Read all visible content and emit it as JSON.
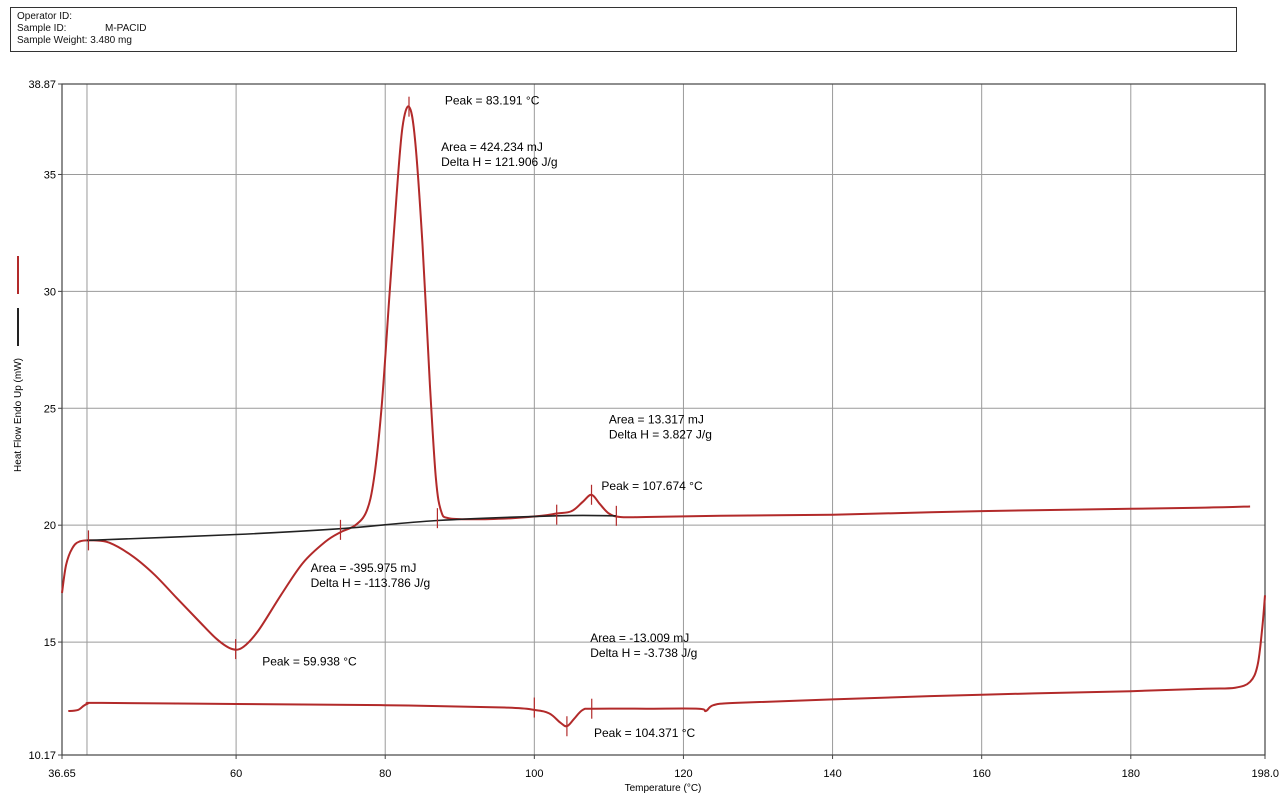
{
  "header": {
    "operator_label": "Operator ID:",
    "operator_value": "",
    "sample_label": "Sample ID:",
    "sample_value": "M-PACID",
    "weight_label": "Sample Weight:",
    "weight_value": "3.480 mg"
  },
  "chart_data": {
    "type": "line",
    "title": "",
    "xlabel": "Temperature (°C)",
    "ylabel": "Heat Flow Endo Up (mW)",
    "xlim": [
      36.65,
      198.0
    ],
    "ylim": [
      10.17,
      38.87
    ],
    "x_ticks": [
      {
        "value": 36.65,
        "label": "36.65"
      },
      {
        "value": 60,
        "label": "60"
      },
      {
        "value": 80,
        "label": "80"
      },
      {
        "value": 100,
        "label": "100"
      },
      {
        "value": 120,
        "label": "120"
      },
      {
        "value": 140,
        "label": "140"
      },
      {
        "value": 160,
        "label": "160"
      },
      {
        "value": 180,
        "label": "180"
      },
      {
        "value": 198.0,
        "label": "198.0"
      }
    ],
    "x_grid": [
      40,
      60,
      80,
      100,
      120,
      140,
      160,
      180
    ],
    "y_ticks": [
      {
        "value": 10.17,
        "label": "10.17"
      },
      {
        "value": 15,
        "label": "15"
      },
      {
        "value": 20,
        "label": "20"
      },
      {
        "value": 25,
        "label": "25"
      },
      {
        "value": 30,
        "label": "30"
      },
      {
        "value": 35,
        "label": "35"
      },
      {
        "value": 38.87,
        "label": "38.87"
      }
    ],
    "grid": true,
    "series": [
      {
        "color": "#b22a2a",
        "points": [
          [
            36.65,
            17.1
          ],
          [
            37.2,
            18.3
          ],
          [
            38,
            19.0
          ],
          [
            39,
            19.3
          ],
          [
            41,
            19.35
          ],
          [
            43,
            19.25
          ],
          [
            46,
            18.7
          ],
          [
            49,
            17.9
          ],
          [
            52,
            16.9
          ],
          [
            55,
            15.9
          ],
          [
            57.5,
            15.1
          ],
          [
            59.5,
            14.7
          ],
          [
            61,
            14.8
          ],
          [
            63,
            15.5
          ],
          [
            66,
            17.0
          ],
          [
            69,
            18.4
          ],
          [
            72,
            19.3
          ],
          [
            74,
            19.7
          ],
          [
            76,
            20.0
          ],
          [
            77.5,
            20.6
          ],
          [
            78.5,
            22.0
          ],
          [
            79.5,
            25.0
          ],
          [
            80.5,
            29.5
          ],
          [
            81.5,
            34.0
          ],
          [
            82.3,
            37.0
          ],
          [
            83.19,
            37.9
          ],
          [
            84,
            36.5
          ],
          [
            85,
            32.0
          ],
          [
            86,
            26.0
          ],
          [
            86.8,
            22.0
          ],
          [
            87.5,
            20.6
          ],
          [
            88.5,
            20.3
          ],
          [
            92,
            20.25
          ],
          [
            97,
            20.3
          ],
          [
            101,
            20.4
          ],
          [
            103,
            20.5
          ],
          [
            105,
            20.6
          ],
          [
            106.5,
            21.0
          ],
          [
            107.67,
            21.3
          ],
          [
            108.8,
            20.9
          ],
          [
            110,
            20.5
          ],
          [
            111.5,
            20.35
          ],
          [
            115,
            20.35
          ],
          [
            125,
            20.4
          ],
          [
            140,
            20.45
          ],
          [
            160,
            20.6
          ],
          [
            180,
            20.7
          ],
          [
            190,
            20.75
          ],
          [
            196,
            20.8
          ]
        ]
      },
      {
        "color": "#b22a2a",
        "points": [
          [
            37.5,
            12.05
          ],
          [
            38.8,
            12.1
          ],
          [
            40,
            12.35
          ],
          [
            42,
            12.4
          ],
          [
            60,
            12.35
          ],
          [
            80,
            12.3
          ],
          [
            96,
            12.2
          ],
          [
            100,
            12.1
          ],
          [
            102,
            11.95
          ],
          [
            103.5,
            11.55
          ],
          [
            104.37,
            11.4
          ],
          [
            105.3,
            11.7
          ],
          [
            106.5,
            12.1
          ],
          [
            108,
            12.15
          ],
          [
            115,
            12.15
          ],
          [
            122,
            12.15
          ],
          [
            123,
            12.05
          ],
          [
            124,
            12.3
          ],
          [
            127,
            12.4
          ],
          [
            140,
            12.55
          ],
          [
            160,
            12.75
          ],
          [
            180,
            12.9
          ],
          [
            190,
            13.0
          ],
          [
            194,
            13.05
          ],
          [
            196,
            13.3
          ],
          [
            197,
            14.0
          ],
          [
            197.6,
            15.5
          ],
          [
            198,
            17.0
          ]
        ]
      },
      {
        "color": "#222222",
        "points": [
          [
            40,
            19.35
          ],
          [
            60,
            19.6
          ],
          [
            74,
            19.85
          ],
          [
            87,
            20.2
          ],
          [
            103,
            20.4
          ],
          [
            111,
            20.4
          ]
        ]
      }
    ],
    "event_markers": [
      {
        "x": 40.2,
        "y": 19.35,
        "series": 0
      },
      {
        "x": 74,
        "y": 19.8,
        "series": 0
      },
      {
        "x": 87,
        "y": 20.3,
        "series": 0
      },
      {
        "x": 83.19,
        "y": 37.9,
        "series": 0
      },
      {
        "x": 59.94,
        "y": 14.7,
        "series": 0
      },
      {
        "x": 103,
        "y": 20.45,
        "series": 0
      },
      {
        "x": 107.67,
        "y": 21.3,
        "series": 0
      },
      {
        "x": 111,
        "y": 20.4,
        "series": 0
      },
      {
        "x": 100,
        "y": 12.2,
        "series": 1
      },
      {
        "x": 104.37,
        "y": 11.4,
        "series": 1
      },
      {
        "x": 107.7,
        "y": 12.15,
        "series": 1
      }
    ],
    "annotations": [
      {
        "lines": [
          "Peak = 83.191 °C"
        ],
        "x": 88,
        "y": 38.0
      },
      {
        "lines": [
          "Area = 424.234 mJ",
          "Delta H = 121.906 J/g"
        ],
        "x": 87.5,
        "y": 36.0
      },
      {
        "lines": [
          "Area = 13.317 mJ",
          "Delta H = 3.827 J/g"
        ],
        "x": 110,
        "y": 24.35
      },
      {
        "lines": [
          "Peak = 107.674 °C"
        ],
        "x": 109,
        "y": 21.5
      },
      {
        "lines": [
          "Area = -395.975 mJ",
          "Delta H = -113.786 J/g"
        ],
        "x": 70,
        "y": 18.0
      },
      {
        "lines": [
          "Peak = 59.938 °C"
        ],
        "x": 63.5,
        "y": 14.0
      },
      {
        "lines": [
          "Area = -13.009 mJ",
          "Delta H = -3.738 J/g"
        ],
        "x": 107.5,
        "y": 15.0
      },
      {
        "lines": [
          "Peak = 104.371 °C"
        ],
        "x": 108,
        "y": 10.95
      }
    ],
    "legend": [
      {
        "color": "#b22a2a"
      },
      {
        "color": "#222222"
      }
    ],
    "colors": {
      "trace": "#b22a2a",
      "baseline": "#222222",
      "grid": "#9a9a9a",
      "frame": "#444444"
    }
  }
}
